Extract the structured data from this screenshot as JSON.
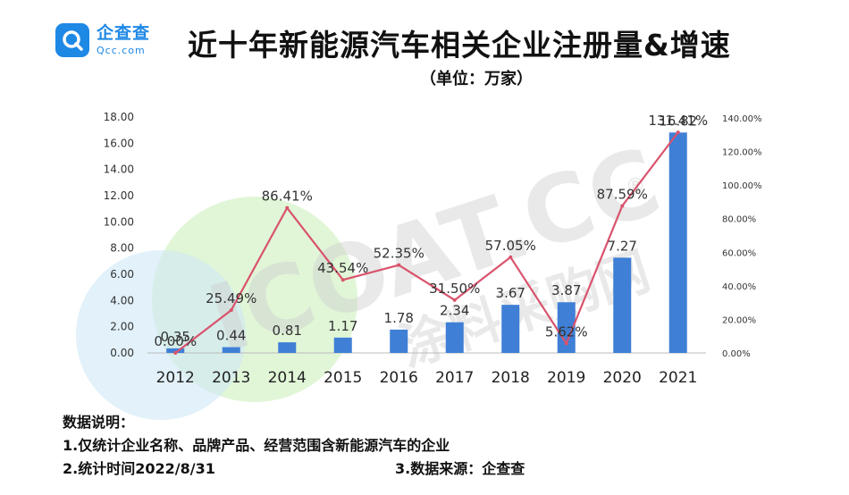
{
  "brand": {
    "name": "企查查",
    "domain": "Qcc.com",
    "color": "#1e88e5"
  },
  "title": "近十年新能源汽车相关企业注册量&增速",
  "subtitle": "（单位：万家）",
  "chart_data": {
    "type": "bar",
    "categories": [
      "2012",
      "2013",
      "2014",
      "2015",
      "2016",
      "2017",
      "2018",
      "2019",
      "2020",
      "2021"
    ],
    "series": [
      {
        "values": [
          0.35,
          0.44,
          0.81,
          1.17,
          1.78,
          2.34,
          3.67,
          3.87,
          7.27,
          16.82
        ],
        "labels": [
          "0.35",
          "0.44",
          "0.81",
          "1.17",
          "1.78",
          "2.34",
          "3.67",
          "3.87",
          "7.27",
          "16.82"
        ],
        "type": "bar",
        "color": "#3f7fd6",
        "axis": "left"
      },
      {
        "values": [
          0.0,
          25.49,
          86.41,
          43.54,
          52.35,
          31.5,
          57.05,
          5.62,
          87.59,
          131.41
        ],
        "labels": [
          "0.00%",
          "25.49%",
          "86.41%",
          "43.54%",
          "52.35%",
          "31.50%",
          "57.05%",
          "5.62%",
          "87.59%",
          "131.41%"
        ],
        "type": "line",
        "color": "#d9536c",
        "axis": "right"
      }
    ],
    "y_left": {
      "min": 0,
      "max": 18,
      "step": 2,
      "ticks": [
        "0.00",
        "2.00",
        "4.00",
        "6.00",
        "8.00",
        "10.00",
        "12.00",
        "14.00",
        "16.00",
        "18.00"
      ]
    },
    "y_right": {
      "min": 0,
      "max": 140,
      "step": 20,
      "ticks": [
        "0.00%",
        "20.00%",
        "40.00%",
        "60.00%",
        "80.00%",
        "100.00%",
        "120.00%",
        "140.00%"
      ]
    },
    "grid": false,
    "legend": "none"
  },
  "notes": {
    "heading": "数据说明：",
    "line1": "1.仅统计企业名称、品牌产品、经营范围含新能源汽车的企业",
    "line2": "2.统计时间2022/8/31",
    "line3": "3.数据来源：企查查"
  },
  "watermark": {
    "text": "ICOAT.CC",
    "subtext": "涂料采购网",
    "mark": "®"
  }
}
